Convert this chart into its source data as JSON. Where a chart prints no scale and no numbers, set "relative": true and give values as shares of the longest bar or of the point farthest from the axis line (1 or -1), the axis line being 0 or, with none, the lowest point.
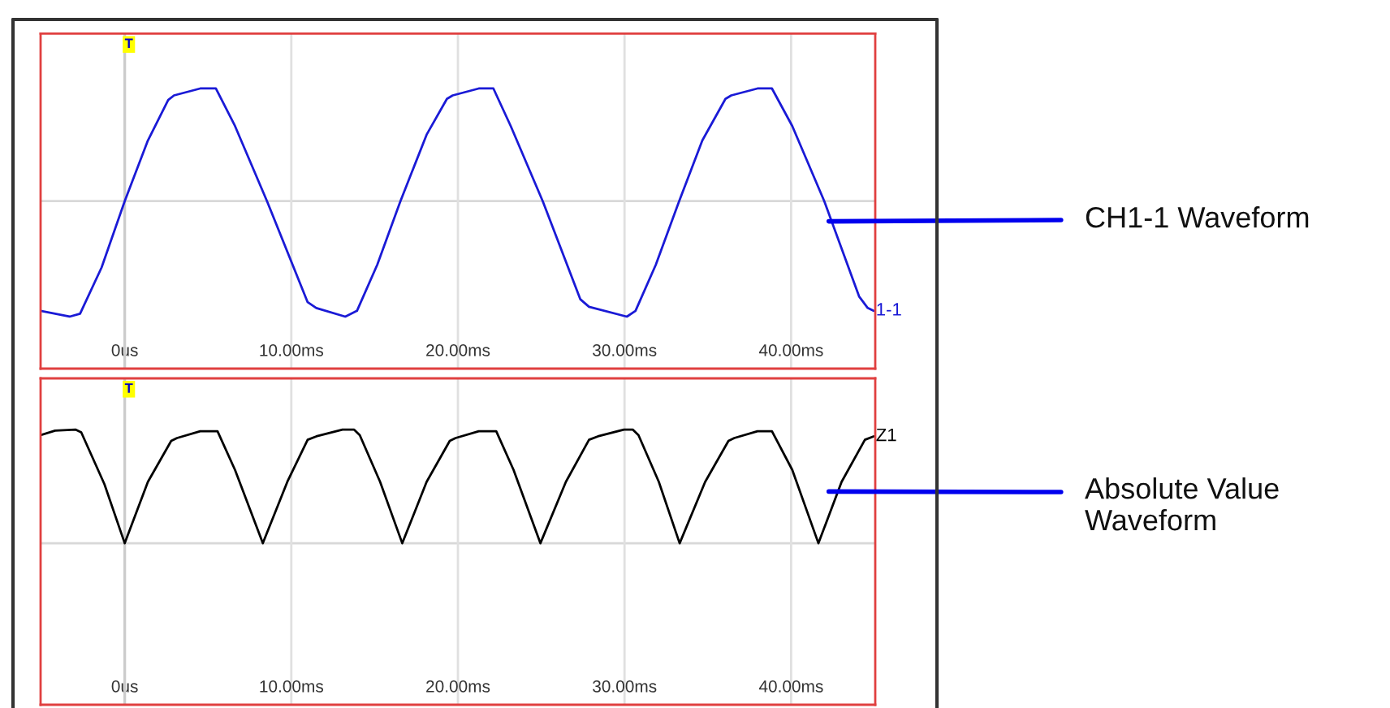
{
  "chart_data": [
    {
      "type": "line",
      "relative": true,
      "xlim": [
        -5.05,
        45.05
      ],
      "xticks": [
        {
          "value": 0,
          "label": "0us"
        },
        {
          "value": 10,
          "label": "10.00ms"
        },
        {
          "value": 20,
          "label": "20.00ms"
        },
        {
          "value": 30,
          "label": "30.00ms"
        },
        {
          "value": 40,
          "label": "40.00ms"
        }
      ],
      "grid": "x",
      "legend": false,
      "x": [
        -5.05,
        -3.31,
        -2.68,
        -1.39,
        0,
        1.39,
        2.61,
        2.96,
        4.53,
        5.47,
        6.62,
        8.54,
        10.98,
        11.5,
        13.24,
        13.94,
        15.16,
        16.55,
        18.12,
        19.34,
        19.69,
        21.25,
        22.13,
        23.17,
        25.09,
        27.35,
        27.87,
        30.14,
        30.66,
        31.88,
        33.28,
        34.67,
        36.06,
        36.41,
        37.98,
        38.85,
        40.07,
        41.99,
        44.08,
        44.6,
        44.95
      ],
      "series": [
        {
          "name": "1-1",
          "color": "#1a1ad6",
          "values": [
            -0.95,
            -1.0,
            -0.975,
            -0.575,
            0,
            0.525,
            0.875,
            0.915,
            0.975,
            0.975,
            0.65,
            0,
            -0.875,
            -0.925,
            -1.0,
            -0.95,
            -0.55,
            0,
            0.575,
            0.885,
            0.915,
            0.975,
            0.975,
            0.65,
            0,
            -0.85,
            -0.915,
            -1.0,
            -0.95,
            -0.55,
            0,
            0.525,
            0.885,
            0.915,
            0.975,
            0.975,
            0.65,
            0,
            -0.825,
            -0.925,
            -0.95
          ]
        }
      ],
      "ref_lines": [
        {
          "axis": "x",
          "value": 0,
          "label": "T",
          "color": "#cccccc"
        }
      ],
      "annotations": [
        {
          "text": "CH1-1 Waveform",
          "x": 42.26,
          "y": -0.175
        }
      ]
    },
    {
      "type": "line",
      "relative": true,
      "xlim": [
        -5.05,
        45.05
      ],
      "xticks": [
        {
          "value": 0,
          "label": "0us"
        },
        {
          "value": 10,
          "label": "10.00ms"
        },
        {
          "value": 20,
          "label": "20.00ms"
        },
        {
          "value": 30,
          "label": "30.00ms"
        },
        {
          "value": 40,
          "label": "40.00ms"
        }
      ],
      "grid": "x",
      "legend": false,
      "x": [
        -5.05,
        -4.18,
        -2.96,
        -2.61,
        -1.22,
        0,
        1.39,
        2.79,
        3.14,
        4.53,
        5.57,
        6.62,
        8.29,
        9.76,
        10.98,
        11.5,
        13.07,
        13.76,
        14.11,
        15.33,
        16.66,
        18.12,
        19.51,
        19.86,
        21.25,
        22.3,
        23.34,
        24.95,
        26.48,
        27.87,
        28.4,
        29.97,
        30.49,
        30.84,
        32.06,
        33.31,
        34.84,
        36.24,
        36.59,
        37.98,
        38.85,
        40.07,
        41.64,
        43.03,
        44.43,
        44.95
      ],
      "series": [
        {
          "name": "Z1",
          "color": "#000000",
          "values": [
            0.95,
            0.99,
            1.0,
            0.975,
            0.52,
            0,
            0.54,
            0.9,
            0.925,
            0.985,
            0.985,
            0.645,
            0,
            0.54,
            0.91,
            0.94,
            1.0,
            1.0,
            0.95,
            0.54,
            0,
            0.54,
            0.9,
            0.925,
            0.985,
            0.985,
            0.645,
            0,
            0.54,
            0.91,
            0.94,
            1.0,
            1.0,
            0.95,
            0.54,
            0,
            0.54,
            0.9,
            0.925,
            0.985,
            0.985,
            0.645,
            0,
            0.54,
            0.91,
            0.94
          ]
        }
      ],
      "ref_lines": [
        {
          "axis": "x",
          "value": 0,
          "label": "T",
          "color": "#cccccc"
        }
      ],
      "annotations": [
        {
          "text": "Absolute Value Waveform",
          "x": 42.26,
          "y": 0.455
        }
      ]
    }
  ]
}
